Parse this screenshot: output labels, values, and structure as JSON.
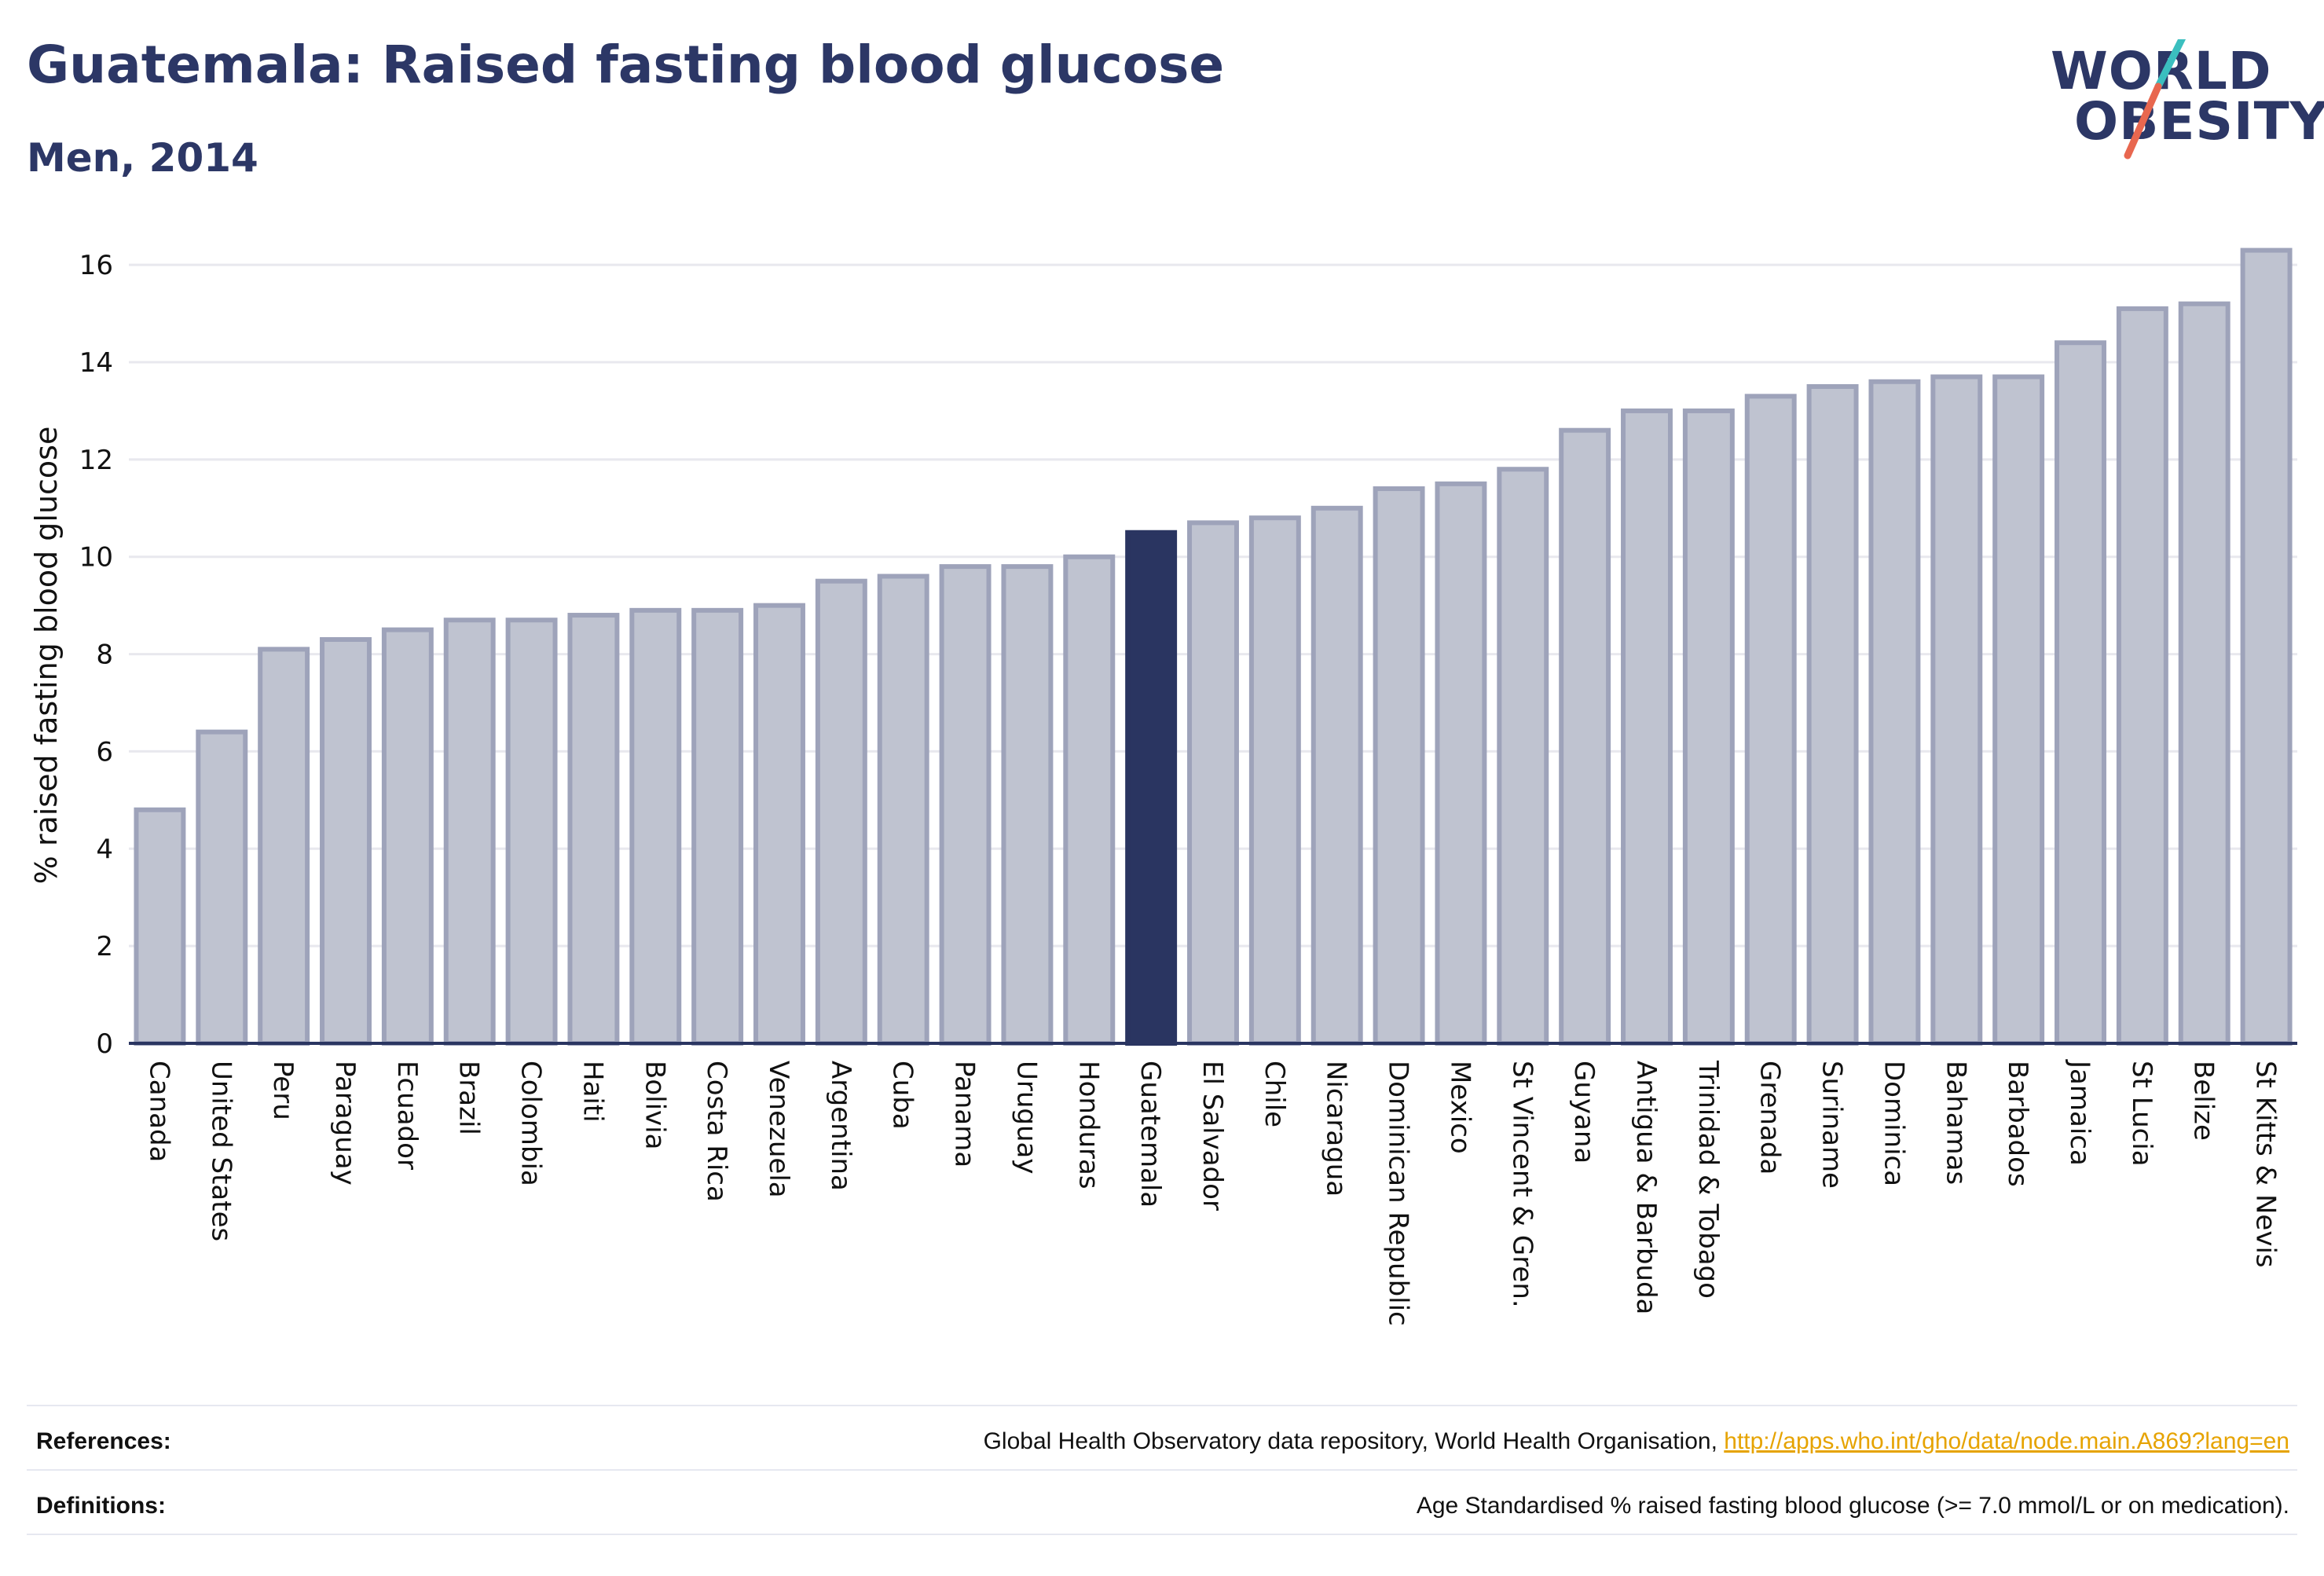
{
  "header": {
    "title": "Guatemala: Raised fasting blood glucose",
    "subtitle": "Men, 2014"
  },
  "logo": {
    "line1": "WORLD",
    "line2": "OBESITY",
    "colors": {
      "text": "#2c3766",
      "slash_top": "#3bbfbf",
      "slash_bottom": "#e8674f"
    }
  },
  "colors": {
    "bar_fill": "#bfc3d0",
    "bar_stroke": "#9ea3ba",
    "highlight": "#2a3561",
    "grid": "#e8e8ee",
    "axis": "#2a3561"
  },
  "chart_data": {
    "type": "bar",
    "title": "",
    "xlabel": "",
    "ylabel": "% raised fasting blood glucose",
    "ylim": [
      0,
      16.6
    ],
    "yticks": [
      0,
      2,
      4,
      6,
      8,
      10,
      12,
      14,
      16
    ],
    "grid": true,
    "highlight": "Guatemala",
    "categories": [
      "Canada",
      "United States",
      "Peru",
      "Paraguay",
      "Ecuador",
      "Brazil",
      "Colombia",
      "Haiti",
      "Bolivia",
      "Costa Rica",
      "Venezuela",
      "Argentina",
      "Cuba",
      "Panama",
      "Uruguay",
      "Honduras",
      "Guatemala",
      "El Salvador",
      "Chile",
      "Nicaragua",
      "Dominican Republic",
      "Mexico",
      "St Vincent & Gren.",
      "Guyana",
      "Antigua & Barbuda",
      "Trinidad & Tobago",
      "Grenada",
      "Suriname",
      "Dominica",
      "Bahamas",
      "Barbados",
      "Jamaica",
      "St Lucia",
      "Belize",
      "St Kitts & Nevis"
    ],
    "values": [
      4.8,
      6.4,
      8.1,
      8.3,
      8.5,
      8.7,
      8.7,
      8.8,
      8.9,
      8.9,
      9.0,
      9.5,
      9.6,
      9.8,
      9.8,
      10.0,
      10.5,
      10.7,
      10.8,
      11.0,
      11.4,
      11.5,
      11.8,
      12.6,
      13.0,
      13.0,
      13.3,
      13.5,
      13.6,
      13.7,
      13.7,
      14.4,
      15.1,
      15.2,
      16.3
    ]
  },
  "footer": {
    "references_label": "References:",
    "references_text": "Global Health Observatory data repository, World Health Organisation, ",
    "references_link": "http://apps.who.int/gho/data/node.main.A869?lang=en",
    "definitions_label": "Definitions:",
    "definitions_text": "Age Standardised % raised fasting blood glucose (>= 7.0 mmol/L or on medication)."
  }
}
